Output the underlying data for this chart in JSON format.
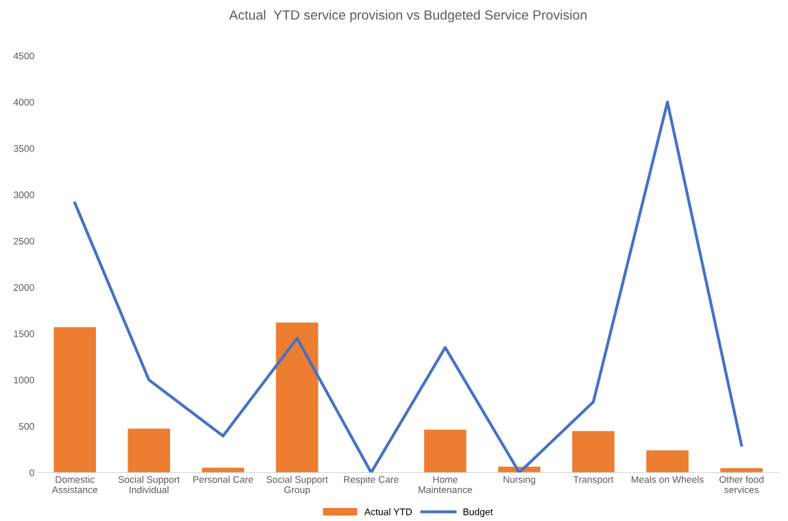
{
  "chart_data": {
    "type": "bar",
    "title": "Actual  YTD service provision vs Budgeted Service Provision",
    "categories": [
      "Domestic\nAssistance",
      "Social Support\nIndividual",
      "Personal Care",
      "Social Support\nGroup",
      "Respite Care",
      "Home\nMaintenance",
      "Nursing",
      "Transport",
      "Meals on Wheels",
      "Other food\nservices"
    ],
    "series": [
      {
        "name": "Actual YTD",
        "color": "#ed7d31",
        "values": [
          1570,
          475,
          52,
          1620,
          0,
          464,
          64,
          448,
          240,
          47
        ]
      },
      {
        "name": "Budget",
        "type": "line",
        "color": "#4472c4",
        "values": [
          2910,
          1000,
          395,
          1450,
          0,
          1350,
          0,
          762,
          4000,
          296
        ]
      }
    ],
    "ylim": [
      0,
      4500
    ],
    "yticks": [
      0,
      500,
      1000,
      1500,
      2000,
      2500,
      3000,
      3500,
      4000,
      4500
    ],
    "legend": "bottom",
    "grid": false,
    "marker": "none",
    "line_style": "solid"
  }
}
